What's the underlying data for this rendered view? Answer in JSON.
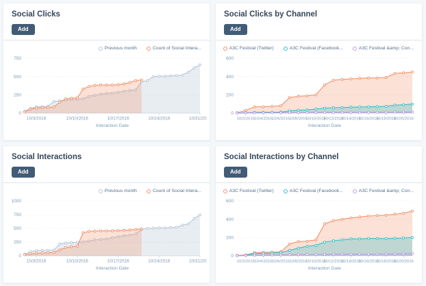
{
  "page": {
    "background": "#f5f8fa",
    "card_background": "#ffffff",
    "title_color": "#33475b",
    "button_color": "#425b76",
    "axis_text_color": "#7c98b6",
    "legend_text_color": "#516f90"
  },
  "cards": [
    {
      "title": "Social Clicks",
      "add_label": "Add"
    },
    {
      "title": "Social Clicks by Channel",
      "add_label": "Add"
    },
    {
      "title": "Social Interactions",
      "add_label": "Add"
    },
    {
      "title": "Social Interactions by Channel",
      "add_label": "Add"
    }
  ],
  "chart_data": [
    {
      "type": "area",
      "title": "Social Clicks",
      "xlabel": "Interaction Date",
      "ylim": [
        0,
        750
      ],
      "yticks": [
        0,
        250,
        500,
        750
      ],
      "grid": true,
      "legend_position": "top-right",
      "x_days": 31,
      "xticks": [
        {
          "day": 3,
          "label": "10/3/2016"
        },
        {
          "day": 10,
          "label": "10/10/2016"
        },
        {
          "day": 17,
          "label": "10/17/2016"
        },
        {
          "day": 24,
          "label": "10/24/2016"
        },
        {
          "day": 31,
          "label": "10/31/2016"
        }
      ],
      "series": [
        {
          "name": "Previous month",
          "color": "#b8c6d7",
          "fill_opacity": 0.32,
          "start_day": 1,
          "values": [
            25,
            65,
            85,
            90,
            95,
            160,
            170,
            180,
            185,
            190,
            200,
            230,
            245,
            260,
            270,
            275,
            285,
            300,
            310,
            320,
            430,
            445,
            500,
            505,
            505,
            510,
            515,
            520,
            560,
            620,
            660
          ]
        },
        {
          "name": "Count of Social Intera...",
          "color": "#f2936b",
          "fill_opacity": 0.28,
          "start_day": 1,
          "values": [
            15,
            55,
            70,
            75,
            80,
            85,
            150,
            195,
            205,
            210,
            330,
            365,
            380,
            385,
            385,
            385,
            390,
            400,
            420,
            445,
            455
          ]
        }
      ]
    },
    {
      "type": "area",
      "title": "Social Clicks by Channel",
      "xlabel": "Interaction Date",
      "ylim": [
        0,
        600
      ],
      "yticks": [
        0,
        200,
        400,
        600
      ],
      "grid": true,
      "legend_position": "top-right",
      "x_days": 21,
      "xticks": [
        {
          "day": 2,
          "label": "10/2/2016"
        },
        {
          "day": 4,
          "label": "10/4/2016"
        },
        {
          "day": 6,
          "label": "10/6/2016"
        },
        {
          "day": 8,
          "label": "10/8/2016"
        },
        {
          "day": 10,
          "label": "10/10/2016"
        },
        {
          "day": 12,
          "label": "10/12/2016"
        },
        {
          "day": 14,
          "label": "10/14/2016"
        },
        {
          "day": 16,
          "label": "10/16/2016"
        },
        {
          "day": 18,
          "label": "10/18/2016"
        },
        {
          "day": 20,
          "label": "10/20/2016"
        }
      ],
      "series": [
        {
          "name": "A3C Festival (Twitter)",
          "color": "#f2936b",
          "fill_opacity": 0.28,
          "start_day": 1,
          "values": [
            5,
            30,
            70,
            70,
            75,
            80,
            170,
            185,
            190,
            200,
            310,
            360,
            370,
            375,
            380,
            385,
            385,
            390,
            435,
            440,
            450
          ]
        },
        {
          "name": "A3C Festival (Facebook...",
          "color": "#35c0c9",
          "fill_opacity": 0.3,
          "start_day": 1,
          "values": [
            2,
            5,
            8,
            10,
            10,
            12,
            25,
            32,
            35,
            45,
            55,
            60,
            62,
            65,
            68,
            70,
            72,
            75,
            88,
            92,
            100
          ]
        },
        {
          "name": "A3C Festival &amp; Con...",
          "color": "#bd9ce6",
          "fill_opacity": 0.25,
          "start_day": 1,
          "values": [
            1,
            2,
            3,
            4,
            5,
            5,
            6,
            7,
            8,
            8,
            8,
            9,
            9,
            10,
            10,
            10,
            10,
            10,
            12,
            12,
            13
          ]
        }
      ]
    },
    {
      "type": "area",
      "title": "Social Interactions",
      "xlabel": "Interaction Date",
      "ylim": [
        0,
        1000
      ],
      "yticks": [
        0,
        250,
        500,
        750,
        1000
      ],
      "grid": true,
      "legend_position": "top-right",
      "x_days": 31,
      "xticks": [
        {
          "day": 3,
          "label": "10/3/2016"
        },
        {
          "day": 10,
          "label": "10/10/2016"
        },
        {
          "day": 17,
          "label": "10/17/2016"
        },
        {
          "day": 24,
          "label": "10/24/2016"
        },
        {
          "day": 31,
          "label": "10/31/2016"
        }
      ],
      "series": [
        {
          "name": "Previous month",
          "color": "#b8c6d7",
          "fill_opacity": 0.32,
          "start_day": 1,
          "values": [
            30,
            75,
            95,
            100,
            100,
            105,
            215,
            235,
            240,
            245,
            255,
            270,
            290,
            300,
            310,
            330,
            350,
            365,
            380,
            400,
            480,
            500,
            505,
            510,
            510,
            515,
            520,
            560,
            580,
            680,
            745
          ]
        },
        {
          "name": "Count of Social Intera...",
          "color": "#f2936b",
          "fill_opacity": 0.28,
          "start_day": 1,
          "values": [
            20,
            35,
            45,
            50,
            55,
            60,
            110,
            150,
            165,
            175,
            420,
            445,
            450,
            455,
            455,
            455,
            460,
            465,
            470,
            480,
            490
          ]
        }
      ]
    },
    {
      "type": "area",
      "title": "Social Interactions by Channel",
      "xlabel": "Interaction Date",
      "ylim": [
        0,
        600
      ],
      "yticks": [
        0,
        200,
        400,
        600
      ],
      "grid": true,
      "legend_position": "top-right",
      "x_days": 21,
      "xticks": [
        {
          "day": 2,
          "label": "10/2/2016"
        },
        {
          "day": 4,
          "label": "10/4/2016"
        },
        {
          "day": 6,
          "label": "10/6/2016"
        },
        {
          "day": 8,
          "label": "10/8/2016"
        },
        {
          "day": 10,
          "label": "10/10/2016"
        },
        {
          "day": 12,
          "label": "10/12/2016"
        },
        {
          "day": 14,
          "label": "10/14/2016"
        },
        {
          "day": 16,
          "label": "10/16/2016"
        },
        {
          "day": 18,
          "label": "10/18/2016"
        },
        {
          "day": 20,
          "label": "10/20/2016"
        }
      ],
      "series": [
        {
          "name": "A3C Festival (Twitter)",
          "color": "#f2936b",
          "fill_opacity": 0.28,
          "start_day": 1,
          "values": [
            5,
            10,
            35,
            38,
            40,
            45,
            130,
            155,
            160,
            175,
            350,
            385,
            400,
            415,
            425,
            435,
            440,
            445,
            455,
            465,
            490
          ]
        },
        {
          "name": "A3C Festival (Facebook...",
          "color": "#35c0c9",
          "fill_opacity": 0.3,
          "start_day": 1,
          "values": [
            2,
            5,
            25,
            27,
            30,
            35,
            60,
            85,
            105,
            115,
            150,
            165,
            175,
            185,
            185,
            190,
            190,
            188,
            192,
            195,
            200
          ]
        },
        {
          "name": "A3C Festival &amp; Con...",
          "color": "#bd9ce6",
          "fill_opacity": 0.25,
          "start_day": 1,
          "values": [
            1,
            3,
            5,
            8,
            10,
            10,
            12,
            14,
            15,
            15,
            16,
            17,
            18,
            18,
            18,
            19,
            19,
            20,
            20,
            22,
            25
          ]
        }
      ]
    }
  ]
}
